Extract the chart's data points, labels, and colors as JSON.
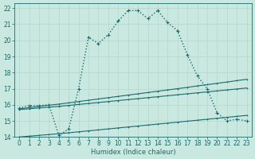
{
  "xlabel": "Humidex (Indice chaleur)",
  "xlim": [
    -0.5,
    23.5
  ],
  "ylim": [
    14,
    22.3
  ],
  "yticks": [
    14,
    15,
    16,
    17,
    18,
    19,
    20,
    21,
    22
  ],
  "xticks": [
    0,
    1,
    2,
    3,
    4,
    5,
    6,
    7,
    8,
    9,
    10,
    11,
    12,
    13,
    14,
    15,
    16,
    17,
    18,
    19,
    20,
    21,
    22,
    23
  ],
  "xtick_labels": [
    "0",
    "1",
    "2",
    "3",
    "4",
    "5",
    "6",
    "7",
    "8",
    "9",
    "10",
    "11",
    "12",
    "13",
    "14",
    "15",
    "16",
    "17",
    "18",
    "19",
    "20",
    "21",
    "22",
    "23"
  ],
  "bg_color": "#c8e8e0",
  "line_color": "#1a6b6b",
  "grid_color": "#b8d8d0",
  "main_x": [
    0,
    1,
    2,
    3,
    4,
    5,
    6,
    7,
    8,
    9,
    10,
    11,
    12,
    13,
    14,
    15,
    16,
    17,
    18,
    19,
    20,
    21,
    22,
    23
  ],
  "main_y": [
    15.8,
    15.95,
    15.95,
    16.0,
    14.1,
    14.5,
    17.0,
    20.2,
    19.8,
    20.35,
    21.2,
    21.85,
    21.85,
    21.35,
    21.85,
    21.1,
    20.6,
    19.1,
    17.8,
    17.0,
    15.5,
    15.0,
    15.1,
    15.0
  ],
  "upper_x": [
    0,
    1,
    2,
    3,
    4,
    5,
    6,
    7,
    8,
    9,
    10,
    11,
    12,
    13,
    14,
    15,
    16,
    17,
    18,
    19,
    20,
    21,
    22,
    23
  ],
  "upper_y": [
    15.75,
    15.82,
    15.9,
    15.97,
    16.04,
    16.12,
    16.2,
    16.28,
    16.36,
    16.44,
    16.52,
    16.6,
    16.68,
    16.76,
    16.84,
    16.92,
    17.0,
    17.08,
    17.17,
    17.25,
    17.33,
    17.41,
    17.5,
    17.58
  ],
  "lower_x": [
    0,
    1,
    2,
    3,
    4,
    5,
    6,
    7,
    8,
    9,
    10,
    11,
    12,
    13,
    14,
    15,
    16,
    17,
    18,
    19,
    20,
    21,
    22,
    23
  ],
  "lower_y": [
    15.7,
    15.75,
    15.8,
    15.85,
    15.9,
    15.96,
    16.02,
    16.08,
    16.14,
    16.2,
    16.26,
    16.32,
    16.38,
    16.44,
    16.5,
    16.56,
    16.62,
    16.68,
    16.74,
    16.8,
    16.86,
    16.92,
    16.98,
    17.04
  ],
  "bottom_x": [
    0,
    1,
    2,
    3,
    4,
    5,
    6,
    7,
    8,
    9,
    10,
    11,
    12,
    13,
    14,
    15,
    16,
    17,
    18,
    19,
    20,
    21,
    22,
    23
  ],
  "bottom_y": [
    14.0,
    14.05,
    14.1,
    14.15,
    14.2,
    14.26,
    14.32,
    14.38,
    14.44,
    14.5,
    14.56,
    14.62,
    14.68,
    14.74,
    14.8,
    14.86,
    14.92,
    14.98,
    15.04,
    15.1,
    15.16,
    15.22,
    15.28,
    15.34
  ]
}
